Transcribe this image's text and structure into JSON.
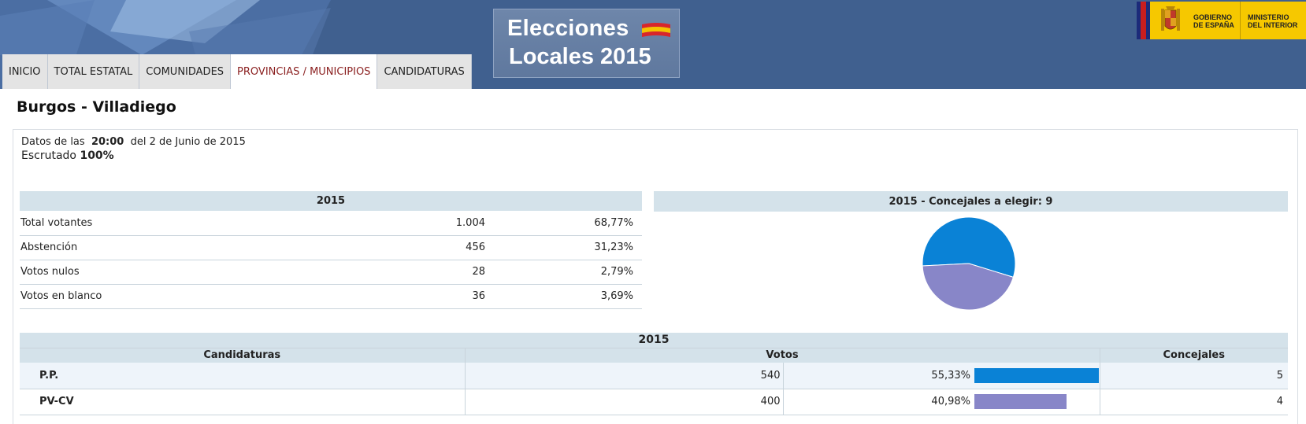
{
  "header": {
    "logo_line1": "Elecciones",
    "logo_line2": "Locales 2015",
    "gov_text1": "GOBIERNO DE ESPAÑA",
    "gov_text2": "MINISTERIO DEL INTERIOR"
  },
  "tabs": [
    {
      "label": "INICIO",
      "active": false
    },
    {
      "label": "TOTAL ESTATAL",
      "active": false
    },
    {
      "label": "COMUNIDADES",
      "active": false
    },
    {
      "label": "PROVINCIAS / MUNICIPIOS",
      "active": true
    },
    {
      "label": "CANDIDATURAS",
      "active": false
    }
  ],
  "page_title": "Burgos - Villadiego",
  "info": {
    "data_prefix": "Datos de las",
    "data_time": "20:00",
    "data_date": "del 2 de Junio de 2015",
    "scrutiny_label": "Escrutado",
    "scrutiny_value": "100%"
  },
  "summary": {
    "header": "2015",
    "rows": [
      {
        "label": "Total votantes",
        "value": "1.004",
        "pct": "68,77%"
      },
      {
        "label": "Abstención",
        "value": "456",
        "pct": "31,23%"
      },
      {
        "label": "Votos nulos",
        "value": "28",
        "pct": "2,79%"
      },
      {
        "label": "Votos en blanco",
        "value": "36",
        "pct": "3,69%"
      }
    ]
  },
  "pie": {
    "title": "2015 - Concejales a elegir: 9"
  },
  "candidates": {
    "year": "2015",
    "col_candidaturas": "Candidaturas",
    "col_votos": "Votos",
    "col_concejales": "Concejales",
    "rows": [
      {
        "name": "P.P.",
        "votes": "540",
        "pct": "55,33%",
        "pct_value": 55.33,
        "concejales": "5",
        "color": "#0a82d6"
      },
      {
        "name": "PV-CV",
        "votes": "400",
        "pct": "40,98%",
        "pct_value": 40.98,
        "concejales": "4",
        "color": "#8886c8"
      }
    ]
  },
  "chart_data": {
    "type": "pie",
    "title": "2015 - Concejales a elegir: 9",
    "categories": [
      "P.P.",
      "PV-CV"
    ],
    "values": [
      5,
      4
    ],
    "colors": [
      "#0a82d6",
      "#8886c8"
    ]
  }
}
